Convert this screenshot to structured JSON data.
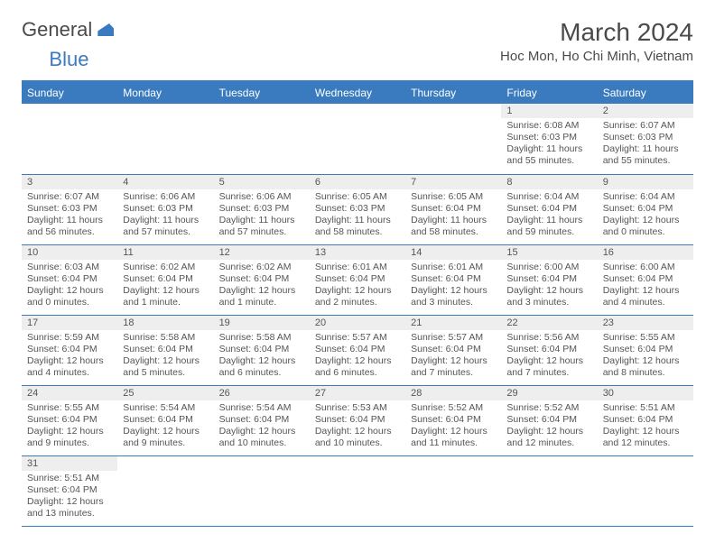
{
  "logo": {
    "text1": "General",
    "text2": "Blue"
  },
  "header": {
    "month_title": "March 2024",
    "location": "Hoc Mon, Ho Chi Minh, Vietnam"
  },
  "colors": {
    "accent": "#3a7bbf",
    "day_header_bg": "#eeeeee",
    "text": "#555555"
  },
  "weekdays": [
    "Sunday",
    "Monday",
    "Tuesday",
    "Wednesday",
    "Thursday",
    "Friday",
    "Saturday"
  ],
  "calendar": {
    "type": "table",
    "columns": 7,
    "rows": 6,
    "days": [
      null,
      null,
      null,
      null,
      null,
      {
        "n": "1",
        "sunrise": "Sunrise: 6:08 AM",
        "sunset": "Sunset: 6:03 PM",
        "daylight": "Daylight: 11 hours and 55 minutes."
      },
      {
        "n": "2",
        "sunrise": "Sunrise: 6:07 AM",
        "sunset": "Sunset: 6:03 PM",
        "daylight": "Daylight: 11 hours and 55 minutes."
      },
      {
        "n": "3",
        "sunrise": "Sunrise: 6:07 AM",
        "sunset": "Sunset: 6:03 PM",
        "daylight": "Daylight: 11 hours and 56 minutes."
      },
      {
        "n": "4",
        "sunrise": "Sunrise: 6:06 AM",
        "sunset": "Sunset: 6:03 PM",
        "daylight": "Daylight: 11 hours and 57 minutes."
      },
      {
        "n": "5",
        "sunrise": "Sunrise: 6:06 AM",
        "sunset": "Sunset: 6:03 PM",
        "daylight": "Daylight: 11 hours and 57 minutes."
      },
      {
        "n": "6",
        "sunrise": "Sunrise: 6:05 AM",
        "sunset": "Sunset: 6:03 PM",
        "daylight": "Daylight: 11 hours and 58 minutes."
      },
      {
        "n": "7",
        "sunrise": "Sunrise: 6:05 AM",
        "sunset": "Sunset: 6:04 PM",
        "daylight": "Daylight: 11 hours and 58 minutes."
      },
      {
        "n": "8",
        "sunrise": "Sunrise: 6:04 AM",
        "sunset": "Sunset: 6:04 PM",
        "daylight": "Daylight: 11 hours and 59 minutes."
      },
      {
        "n": "9",
        "sunrise": "Sunrise: 6:04 AM",
        "sunset": "Sunset: 6:04 PM",
        "daylight": "Daylight: 12 hours and 0 minutes."
      },
      {
        "n": "10",
        "sunrise": "Sunrise: 6:03 AM",
        "sunset": "Sunset: 6:04 PM",
        "daylight": "Daylight: 12 hours and 0 minutes."
      },
      {
        "n": "11",
        "sunrise": "Sunrise: 6:02 AM",
        "sunset": "Sunset: 6:04 PM",
        "daylight": "Daylight: 12 hours and 1 minute."
      },
      {
        "n": "12",
        "sunrise": "Sunrise: 6:02 AM",
        "sunset": "Sunset: 6:04 PM",
        "daylight": "Daylight: 12 hours and 1 minute."
      },
      {
        "n": "13",
        "sunrise": "Sunrise: 6:01 AM",
        "sunset": "Sunset: 6:04 PM",
        "daylight": "Daylight: 12 hours and 2 minutes."
      },
      {
        "n": "14",
        "sunrise": "Sunrise: 6:01 AM",
        "sunset": "Sunset: 6:04 PM",
        "daylight": "Daylight: 12 hours and 3 minutes."
      },
      {
        "n": "15",
        "sunrise": "Sunrise: 6:00 AM",
        "sunset": "Sunset: 6:04 PM",
        "daylight": "Daylight: 12 hours and 3 minutes."
      },
      {
        "n": "16",
        "sunrise": "Sunrise: 6:00 AM",
        "sunset": "Sunset: 6:04 PM",
        "daylight": "Daylight: 12 hours and 4 minutes."
      },
      {
        "n": "17",
        "sunrise": "Sunrise: 5:59 AM",
        "sunset": "Sunset: 6:04 PM",
        "daylight": "Daylight: 12 hours and 4 minutes."
      },
      {
        "n": "18",
        "sunrise": "Sunrise: 5:58 AM",
        "sunset": "Sunset: 6:04 PM",
        "daylight": "Daylight: 12 hours and 5 minutes."
      },
      {
        "n": "19",
        "sunrise": "Sunrise: 5:58 AM",
        "sunset": "Sunset: 6:04 PM",
        "daylight": "Daylight: 12 hours and 6 minutes."
      },
      {
        "n": "20",
        "sunrise": "Sunrise: 5:57 AM",
        "sunset": "Sunset: 6:04 PM",
        "daylight": "Daylight: 12 hours and 6 minutes."
      },
      {
        "n": "21",
        "sunrise": "Sunrise: 5:57 AM",
        "sunset": "Sunset: 6:04 PM",
        "daylight": "Daylight: 12 hours and 7 minutes."
      },
      {
        "n": "22",
        "sunrise": "Sunrise: 5:56 AM",
        "sunset": "Sunset: 6:04 PM",
        "daylight": "Daylight: 12 hours and 7 minutes."
      },
      {
        "n": "23",
        "sunrise": "Sunrise: 5:55 AM",
        "sunset": "Sunset: 6:04 PM",
        "daylight": "Daylight: 12 hours and 8 minutes."
      },
      {
        "n": "24",
        "sunrise": "Sunrise: 5:55 AM",
        "sunset": "Sunset: 6:04 PM",
        "daylight": "Daylight: 12 hours and 9 minutes."
      },
      {
        "n": "25",
        "sunrise": "Sunrise: 5:54 AM",
        "sunset": "Sunset: 6:04 PM",
        "daylight": "Daylight: 12 hours and 9 minutes."
      },
      {
        "n": "26",
        "sunrise": "Sunrise: 5:54 AM",
        "sunset": "Sunset: 6:04 PM",
        "daylight": "Daylight: 12 hours and 10 minutes."
      },
      {
        "n": "27",
        "sunrise": "Sunrise: 5:53 AM",
        "sunset": "Sunset: 6:04 PM",
        "daylight": "Daylight: 12 hours and 10 minutes."
      },
      {
        "n": "28",
        "sunrise": "Sunrise: 5:52 AM",
        "sunset": "Sunset: 6:04 PM",
        "daylight": "Daylight: 12 hours and 11 minutes."
      },
      {
        "n": "29",
        "sunrise": "Sunrise: 5:52 AM",
        "sunset": "Sunset: 6:04 PM",
        "daylight": "Daylight: 12 hours and 12 minutes."
      },
      {
        "n": "30",
        "sunrise": "Sunrise: 5:51 AM",
        "sunset": "Sunset: 6:04 PM",
        "daylight": "Daylight: 12 hours and 12 minutes."
      },
      {
        "n": "31",
        "sunrise": "Sunrise: 5:51 AM",
        "sunset": "Sunset: 6:04 PM",
        "daylight": "Daylight: 12 hours and 13 minutes."
      },
      null,
      null,
      null,
      null,
      null,
      null
    ]
  }
}
